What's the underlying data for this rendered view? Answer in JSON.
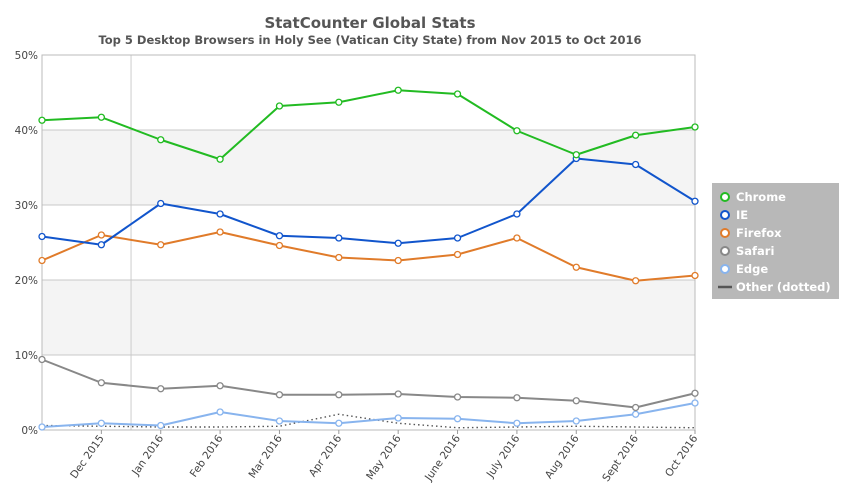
{
  "chart_data": {
    "type": "line",
    "title": "StatCounter Global Stats",
    "subtitle": "Top 5 Desktop Browsers in Holy See (Vatican City State) from Nov 2015 to Oct 2016",
    "y_ticks": [
      "0%",
      "10%",
      "20%",
      "30%",
      "40%",
      "50%"
    ],
    "ylim": [
      0,
      50
    ],
    "grid": true,
    "legend_position": "right",
    "categories": [
      "Nov 2015",
      "Dec 2015",
      "Jan 2016",
      "Feb 2016",
      "Mar 2016",
      "Apr 2016",
      "May 2016",
      "June 2016",
      "July 2016",
      "Aug 2016",
      "Sept 2016",
      "Oct 2016"
    ],
    "x_tick_labels": [
      "Dec 2015",
      "Jan 2016",
      "Feb 2016",
      "Mar 2016",
      "Apr 2016",
      "May 2016",
      "June 2016",
      "July 2016",
      "Aug 2016",
      "Sept 2016",
      "Oct 2016"
    ],
    "series": [
      {
        "name": "Chrome",
        "color": "#22bb22",
        "values": [
          41.3,
          41.7,
          38.7,
          36.1,
          43.2,
          43.7,
          45.3,
          44.8,
          39.9,
          36.7,
          39.3,
          40.4
        ]
      },
      {
        "name": "IE",
        "color": "#1155cc",
        "values": [
          25.8,
          24.7,
          30.2,
          28.8,
          25.9,
          25.6,
          24.9,
          25.6,
          28.8,
          36.2,
          35.4,
          30.5
        ]
      },
      {
        "name": "Firefox",
        "color": "#e07b2a",
        "values": [
          22.6,
          26.0,
          24.7,
          26.4,
          24.6,
          23.0,
          22.6,
          23.4,
          25.6,
          21.7,
          19.9,
          20.6
        ]
      },
      {
        "name": "Safari",
        "color": "#888888",
        "values": [
          9.4,
          6.3,
          5.5,
          5.9,
          4.7,
          4.7,
          4.8,
          4.4,
          4.3,
          3.9,
          3.0,
          4.9
        ]
      },
      {
        "name": "Edge",
        "color": "#88b4ee",
        "values": [
          0.4,
          0.9,
          0.6,
          2.4,
          1.2,
          0.9,
          1.6,
          1.5,
          0.9,
          1.2,
          2.1,
          3.6
        ]
      },
      {
        "name": "Other (dotted)",
        "color": "#555555",
        "dotted": true,
        "values": [
          0.6,
          0.5,
          0.4,
          0.4,
          0.5,
          2.1,
          0.9,
          0.3,
          0.4,
          0.5,
          0.4,
          0.3
        ]
      }
    ]
  }
}
